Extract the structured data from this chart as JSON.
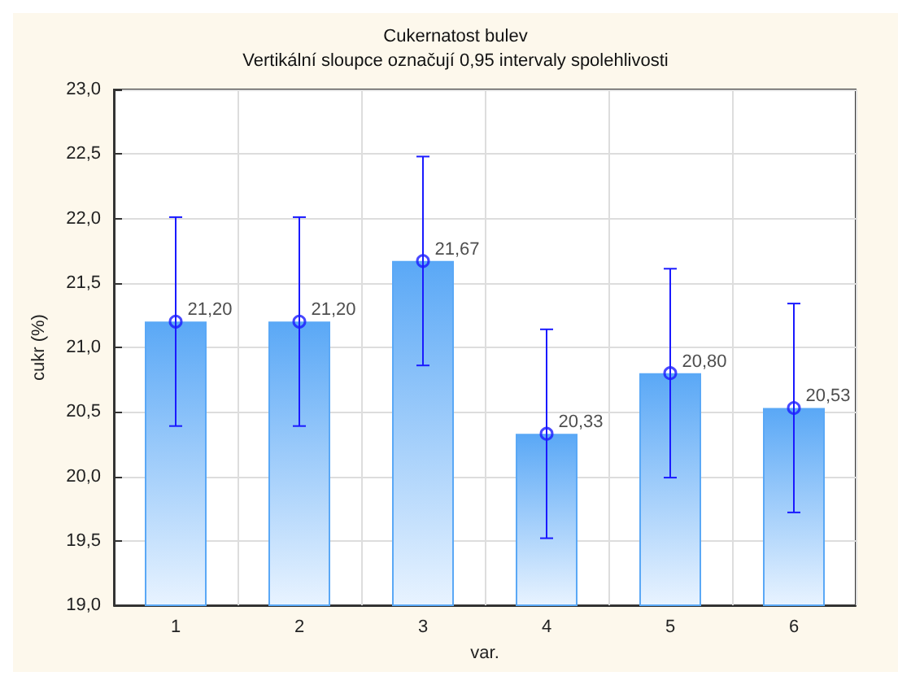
{
  "chart_data": {
    "type": "bar",
    "title": "Cukernatost bulev",
    "subtitle": "Vertikální sloupce označují 0,95 intervaly spolehlivosti",
    "xlabel": "var.",
    "ylabel": "cukr (%)",
    "categories": [
      "1",
      "2",
      "3",
      "4",
      "5",
      "6"
    ],
    "series": [
      {
        "color": "#5aa8f6",
        "values": [
          21.2,
          21.2,
          21.67,
          20.33,
          20.8,
          20.53
        ],
        "errors": [
          0.81,
          0.81,
          0.81,
          0.81,
          0.81,
          0.81
        ]
      },
      {
        "type": "scatter",
        "color": "#1a1aff",
        "marker": "circle",
        "x": [
          "1",
          "2",
          "3",
          "4",
          "5",
          "6"
        ],
        "values": [
          21.2,
          21.2,
          21.67,
          20.33,
          20.8,
          20.53
        ],
        "value_labels": [
          "21,20",
          "21,20",
          "21,67",
          "20,33",
          "20,80",
          "20,53"
        ]
      }
    ],
    "grid": true,
    "ylim": [
      19,
      23
    ],
    "yticks": [
      {
        "value": 19,
        "label": "19,0"
      },
      {
        "value": 19.5,
        "label": "19,5"
      },
      {
        "value": 20,
        "label": "20,0"
      },
      {
        "value": 20.5,
        "label": "20,5"
      },
      {
        "value": 21,
        "label": "21,0"
      },
      {
        "value": 21.5,
        "label": "21,5"
      },
      {
        "value": 22,
        "label": "22,0"
      },
      {
        "value": 22.5,
        "label": "22,5"
      },
      {
        "value": 23,
        "label": "23,0"
      }
    ]
  }
}
